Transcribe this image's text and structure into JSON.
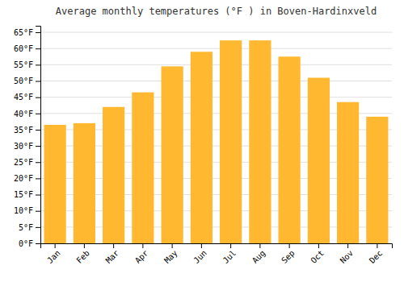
{
  "chart_data": {
    "type": "bar",
    "title": "Average monthly temperatures (°F ) in Boven-Hardinxveld",
    "categories": [
      "Jan",
      "Feb",
      "Mar",
      "Apr",
      "May",
      "Jun",
      "Jul",
      "Aug",
      "Sep",
      "Oct",
      "Nov",
      "Dec"
    ],
    "values": [
      36.5,
      37.0,
      42.0,
      46.5,
      54.5,
      59.0,
      62.5,
      62.5,
      57.5,
      51.0,
      43.5,
      39.0
    ],
    "color": "#FFB830",
    "ylim": [
      0,
      67
    ],
    "yticks": [
      {
        "value": 0,
        "label": "0°F"
      },
      {
        "value": 5,
        "label": "5°F"
      },
      {
        "value": 10,
        "label": "10°F"
      },
      {
        "value": 15,
        "label": "15°F"
      },
      {
        "value": 20,
        "label": "20°F"
      },
      {
        "value": 25,
        "label": "25°F"
      },
      {
        "value": 30,
        "label": "30°F"
      },
      {
        "value": 35,
        "label": "35°F"
      },
      {
        "value": 40,
        "label": "40°F"
      },
      {
        "value": 45,
        "label": "45°F"
      },
      {
        "value": 50,
        "label": "50°F"
      },
      {
        "value": 55,
        "label": "55°F"
      },
      {
        "value": 60,
        "label": "60°F"
      },
      {
        "value": 65,
        "label": "65°F"
      }
    ],
    "grid": true
  }
}
